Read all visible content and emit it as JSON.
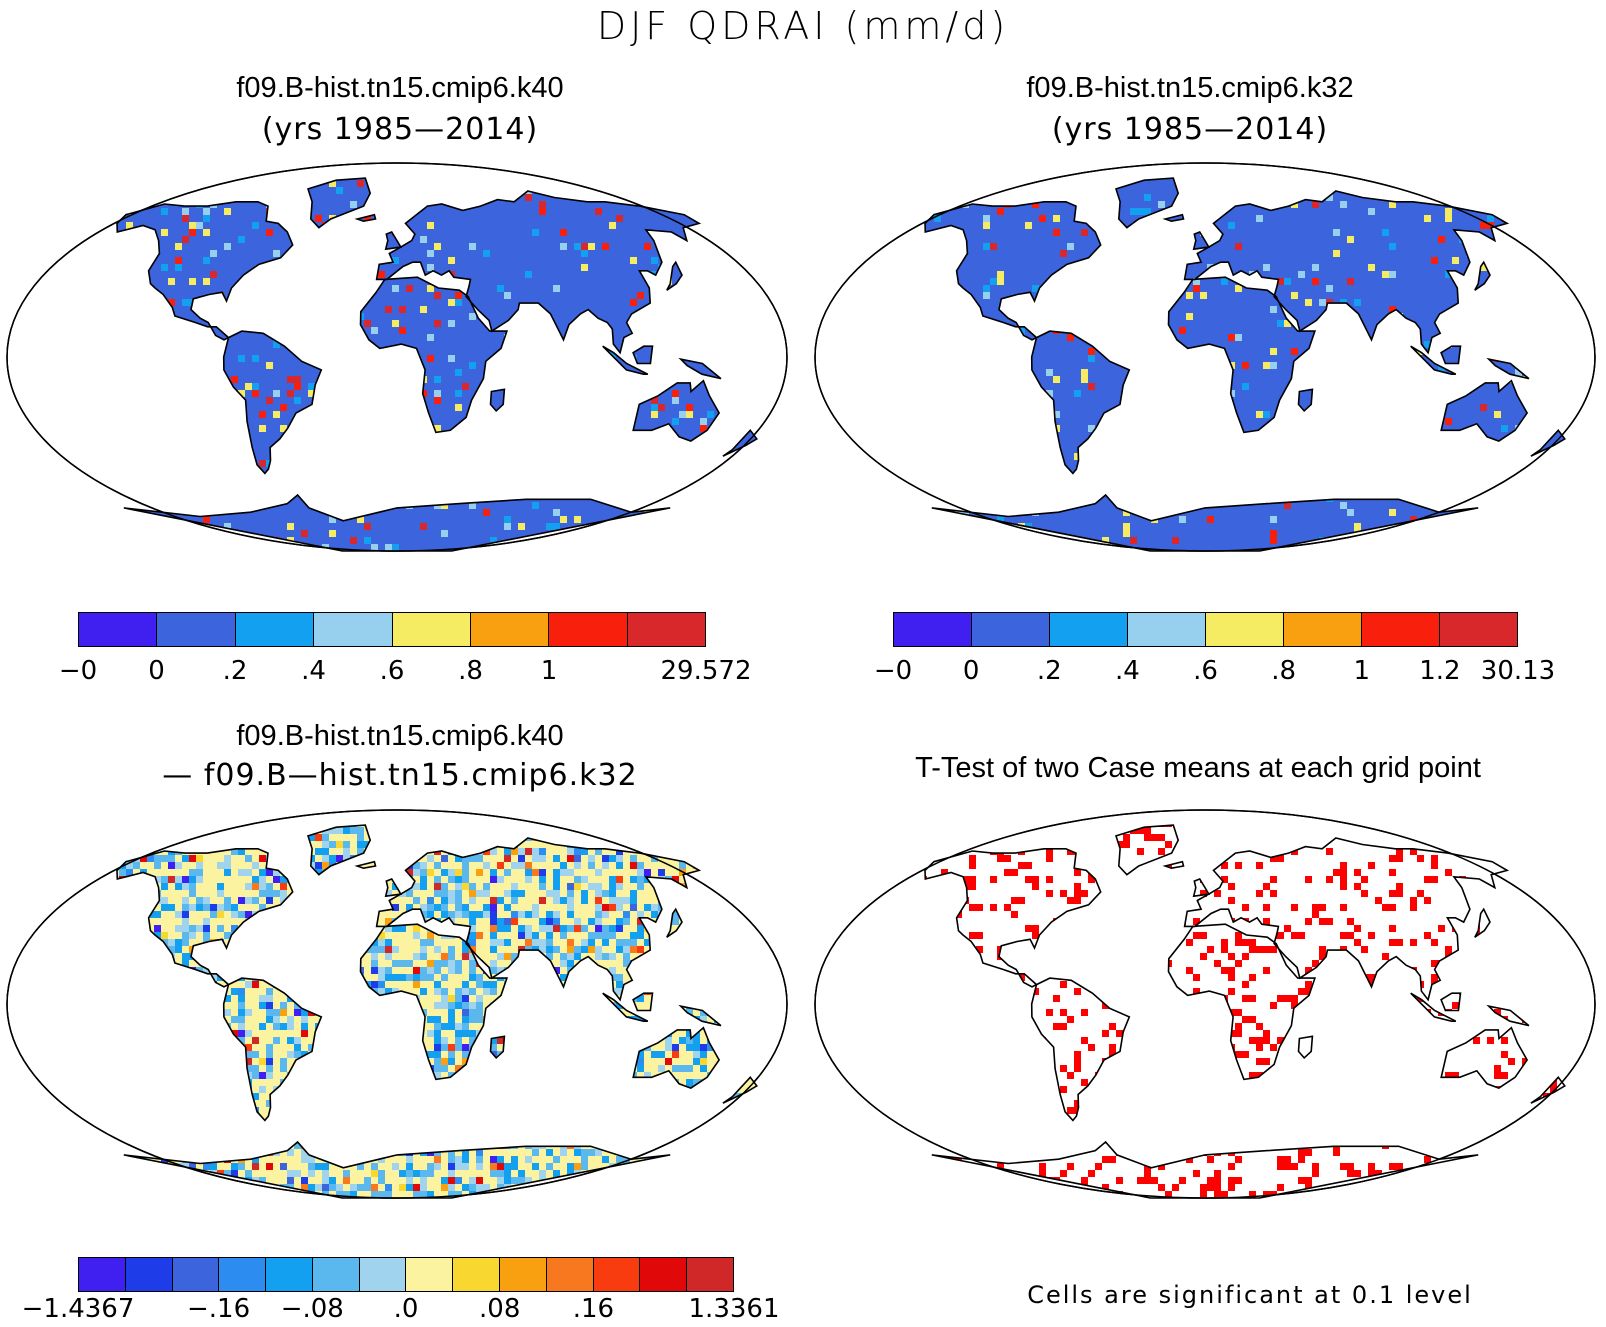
{
  "main_title": "DJF QDRAI (mm/d)",
  "panels": [
    {
      "title": "f09.B-hist.tn15.cmip6.k40",
      "subtitle": "(yrs 1985—2014)",
      "fill": "#3c64dc",
      "colorbar": {
        "colors": [
          "#4020f0",
          "#3c64dc",
          "#14a0f0",
          "#96d0ee",
          "#f6ec64",
          "#f8a010",
          "#f8200c",
          "#d8282c"
        ],
        "labels": [
          "−0",
          "0",
          ".2",
          ".4",
          ".6",
          ".8",
          "1",
          "29.572"
        ],
        "label_edges": [
          0,
          1,
          2,
          3,
          4,
          5,
          6,
          8
        ]
      }
    },
    {
      "title": "f09.B-hist.tn15.cmip6.k32",
      "subtitle": "(yrs 1985—2014)",
      "fill": "#3c64dc",
      "colorbar": {
        "colors": [
          "#4020f0",
          "#3c64dc",
          "#14a0f0",
          "#96d0ee",
          "#f6ec64",
          "#f8a010",
          "#f8200c",
          "#d8282c"
        ],
        "labels": [
          "−0",
          "0",
          ".2",
          ".4",
          ".6",
          ".8",
          "1",
          "1.2",
          "30.13"
        ],
        "label_edges": [
          0,
          1,
          2,
          3,
          4,
          5,
          6,
          7,
          8
        ]
      }
    },
    {
      "title": "f09.B-hist.tn15.cmip6.k40",
      "subtitle": "— f09.B—hist.tn15.cmip6.k32",
      "fill": "#fbf3a0",
      "colorbar": {
        "colors": [
          "#4020f0",
          "#1e3ce8",
          "#3c64dc",
          "#2c8cf0",
          "#14a0f0",
          "#5ab8ee",
          "#a0d4ee",
          "#fbf3a0",
          "#f8d830",
          "#f8a010",
          "#f87820",
          "#f83c10",
          "#e00808",
          "#d02828"
        ],
        "labels": [
          "−1.4367",
          "−.16",
          "−.08",
          ".0",
          ".08",
          ".16",
          "1.3361"
        ],
        "label_edges": [
          0,
          3,
          5,
          7,
          9,
          11,
          14
        ]
      }
    },
    {
      "title": "T-Test of two Case means at each grid point",
      "fill": "#ffffff",
      "footnote": "Cells are significant at 0.1 level"
    }
  ],
  "colors": {
    "land_outline": "#000000",
    "significant": "#ff0000",
    "background": "#ffffff"
  }
}
